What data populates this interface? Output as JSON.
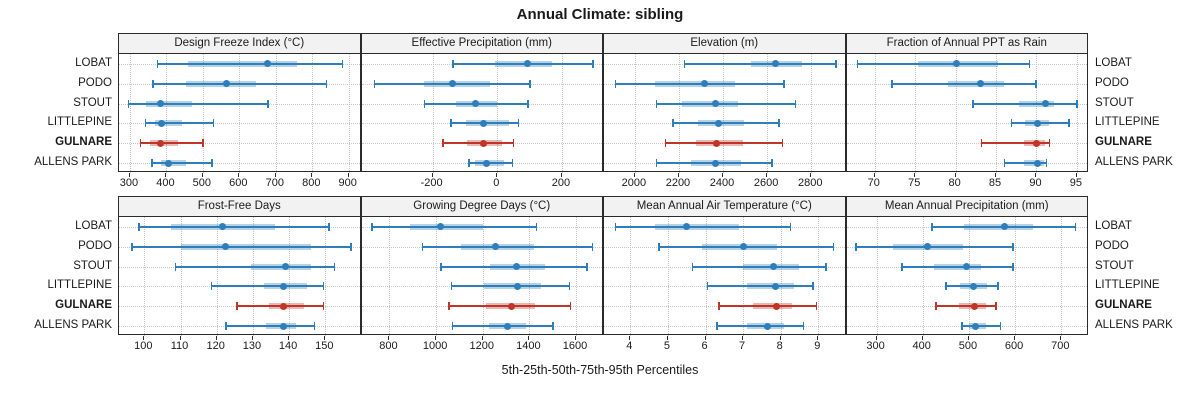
{
  "title": "Annual Climate: sibling",
  "caption": "5th-25th-50th-75th-95th Percentiles",
  "stations": [
    "LOBAT",
    "PODO",
    "STOUT",
    "LITTLEPINE",
    "GULNARE",
    "ALLENS PARK"
  ],
  "highlight_station": "GULNARE",
  "colors": {
    "normal": "#2e7ebb",
    "highlight": "#c13428",
    "grid": "#c9c9c9",
    "header_bg": "#f2f2f2",
    "border": "#2b2b2b"
  },
  "layout_hint": {
    "rows": 2,
    "cols": 4,
    "grid": "dotted",
    "percentiles": [
      5,
      25,
      50,
      75,
      95
    ]
  },
  "chart_data": [
    {
      "type": "dotplot-percentiles",
      "title": "Design Freeze Index (°C)",
      "xlim": [
        270,
        935
      ],
      "ticks": [
        300,
        400,
        500,
        600,
        700,
        800,
        900
      ],
      "rows": [
        {
          "station": "LOBAT",
          "percentiles": [
            375,
            460,
            678,
            758,
            882
          ]
        },
        {
          "station": "PODO",
          "percentiles": [
            362,
            455,
            565,
            645,
            838
          ]
        },
        {
          "station": "STOUT",
          "percentiles": [
            296,
            344,
            385,
            470,
            678
          ]
        },
        {
          "station": "LITTLEPINE",
          "percentiles": [
            342,
            368,
            386,
            442,
            528
          ]
        },
        {
          "station": "GULNARE",
          "percentiles": [
            328,
            355,
            384,
            432,
            500
          ]
        },
        {
          "station": "ALLENS PARK",
          "percentiles": [
            360,
            386,
            406,
            455,
            525
          ]
        }
      ]
    },
    {
      "type": "dotplot-percentiles",
      "title": "Effective Precipitation (mm)",
      "xlim": [
        -420,
        330
      ],
      "ticks": [
        -200,
        0,
        200
      ],
      "rows": [
        {
          "station": "LOBAT",
          "percentiles": [
            -138,
            -6,
            92,
            168,
            295
          ]
        },
        {
          "station": "PODO",
          "percentiles": [
            -380,
            -228,
            -139,
            -22,
            100
          ]
        },
        {
          "station": "STOUT",
          "percentiles": [
            -226,
            -128,
            -66,
            0,
            94
          ]
        },
        {
          "station": "LITTLEPINE",
          "percentiles": [
            -144,
            -96,
            -42,
            36,
            65
          ]
        },
        {
          "station": "GULNARE",
          "percentiles": [
            -168,
            -95,
            -44,
            14,
            50
          ]
        },
        {
          "station": "ALLENS PARK",
          "percentiles": [
            -89,
            -70,
            -33,
            20,
            47
          ]
        }
      ]
    },
    {
      "type": "dotplot-percentiles",
      "title": "Elevation (m)",
      "xlim": [
        1860,
        2960
      ],
      "ticks": [
        2000,
        2200,
        2400,
        2600,
        2800
      ],
      "rows": [
        {
          "station": "LOBAT",
          "percentiles": [
            2224,
            2528,
            2640,
            2756,
            2912
          ]
        },
        {
          "station": "PODO",
          "percentiles": [
            1912,
            2092,
            2316,
            2456,
            2676
          ]
        },
        {
          "station": "STOUT",
          "percentiles": [
            2098,
            2212,
            2364,
            2466,
            2728
          ]
        },
        {
          "station": "LITTLEPINE",
          "percentiles": [
            2172,
            2286,
            2378,
            2496,
            2652
          ]
        },
        {
          "station": "GULNARE",
          "percentiles": [
            2138,
            2276,
            2370,
            2490,
            2668
          ]
        },
        {
          "station": "ALLENS PARK",
          "percentiles": [
            2098,
            2256,
            2366,
            2480,
            2620
          ]
        }
      ]
    },
    {
      "type": "dotplot-percentiles",
      "title": "Fraction of Annual PPT as Rain",
      "xlim": [
        66.5,
        96.5
      ],
      "ticks": [
        70,
        75,
        80,
        85,
        90,
        95
      ],
      "rows": [
        {
          "station": "LOBAT",
          "percentiles": [
            67.8,
            75.3,
            80.1,
            85.2,
            89.1
          ]
        },
        {
          "station": "PODO",
          "percentiles": [
            72.1,
            79.0,
            83.1,
            86.0,
            89.9
          ]
        },
        {
          "station": "STOUT",
          "percentiles": [
            82.1,
            87.8,
            91.1,
            92.2,
            95.0
          ]
        },
        {
          "station": "LITTLEPINE",
          "percentiles": [
            86.9,
            88.6,
            90.1,
            91.5,
            94.0
          ]
        },
        {
          "station": "GULNARE",
          "percentiles": [
            83.2,
            88.4,
            90.0,
            91.0,
            91.6
          ]
        },
        {
          "station": "ALLENS PARK",
          "percentiles": [
            86.0,
            88.4,
            90.1,
            90.9,
            91.2
          ]
        }
      ]
    },
    {
      "type": "dotplot-percentiles",
      "title": "Frost-Free Days",
      "xlim": [
        93,
        160
      ],
      "ticks": [
        100,
        110,
        120,
        130,
        140,
        150
      ],
      "rows": [
        {
          "station": "LOBAT",
          "percentiles": [
            98.5,
            107.5,
            121.5,
            136,
            151
          ]
        },
        {
          "station": "PODO",
          "percentiles": [
            96.5,
            110,
            122.5,
            146,
            157
          ]
        },
        {
          "station": "STOUT",
          "percentiles": [
            108.5,
            129.5,
            139,
            146,
            152.5
          ]
        },
        {
          "station": "LITTLEPINE",
          "percentiles": [
            118.5,
            133,
            138.5,
            145,
            149.5
          ]
        },
        {
          "station": "GULNARE",
          "percentiles": [
            125.5,
            134.5,
            138.5,
            144,
            149.5
          ]
        },
        {
          "station": "ALLENS PARK",
          "percentiles": [
            122.5,
            133.5,
            138.5,
            142,
            147
          ]
        }
      ]
    },
    {
      "type": "dotplot-percentiles",
      "title": "Growing Degree Days (°C)",
      "xlim": [
        680,
        1720
      ],
      "ticks": [
        800,
        1000,
        1200,
        1400,
        1600
      ],
      "rows": [
        {
          "station": "LOBAT",
          "percentiles": [
            725,
            890,
            1020,
            1200,
            1430
          ]
        },
        {
          "station": "PODO",
          "percentiles": [
            940,
            1105,
            1255,
            1420,
            1670
          ]
        },
        {
          "station": "STOUT",
          "percentiles": [
            1020,
            1230,
            1345,
            1465,
            1645
          ]
        },
        {
          "station": "LITTLEPINE",
          "percentiles": [
            1065,
            1205,
            1350,
            1450,
            1570
          ]
        },
        {
          "station": "GULNARE",
          "percentiles": [
            1055,
            1215,
            1325,
            1425,
            1575
          ]
        },
        {
          "station": "ALLENS PARK",
          "percentiles": [
            1070,
            1225,
            1305,
            1385,
            1500
          ]
        }
      ]
    },
    {
      "type": "dotplot-percentiles",
      "title": "Mean Annual Air Temperature (°C)",
      "xlim": [
        3.3,
        9.75
      ],
      "ticks": [
        4,
        5,
        6,
        7,
        8,
        9
      ],
      "rows": [
        {
          "station": "LOBAT",
          "percentiles": [
            3.6,
            4.65,
            5.5,
            6.9,
            8.25
          ]
        },
        {
          "station": "PODO",
          "percentiles": [
            4.75,
            5.9,
            7.0,
            7.9,
            9.4
          ]
        },
        {
          "station": "STOUT",
          "percentiles": [
            5.65,
            7.0,
            7.8,
            8.5,
            9.2
          ]
        },
        {
          "station": "LITTLEPINE",
          "percentiles": [
            6.05,
            7.1,
            7.85,
            8.35,
            8.85
          ]
        },
        {
          "station": "GULNARE",
          "percentiles": [
            6.35,
            7.25,
            7.9,
            8.3,
            8.95
          ]
        },
        {
          "station": "ALLENS PARK",
          "percentiles": [
            6.3,
            7.1,
            7.65,
            8.1,
            8.6
          ]
        }
      ]
    },
    {
      "type": "dotplot-percentiles",
      "title": "Mean Annual Precipitation (mm)",
      "xlim": [
        235,
        760
      ],
      "ticks": [
        300,
        400,
        500,
        600,
        700
      ],
      "rows": [
        {
          "station": "LOBAT",
          "percentiles": [
            420,
            490,
            578,
            638,
            730
          ]
        },
        {
          "station": "PODO",
          "percentiles": [
            255,
            335,
            410,
            488,
            595
          ]
        },
        {
          "station": "STOUT",
          "percentiles": [
            355,
            425,
            495,
            527,
            595
          ]
        },
        {
          "station": "LITTLEPINE",
          "percentiles": [
            450,
            480,
            510,
            540,
            562
          ]
        },
        {
          "station": "GULNARE",
          "percentiles": [
            428,
            478,
            512,
            536,
            558
          ]
        },
        {
          "station": "ALLENS PARK",
          "percentiles": [
            485,
            500,
            515,
            538,
            568
          ]
        }
      ]
    }
  ]
}
